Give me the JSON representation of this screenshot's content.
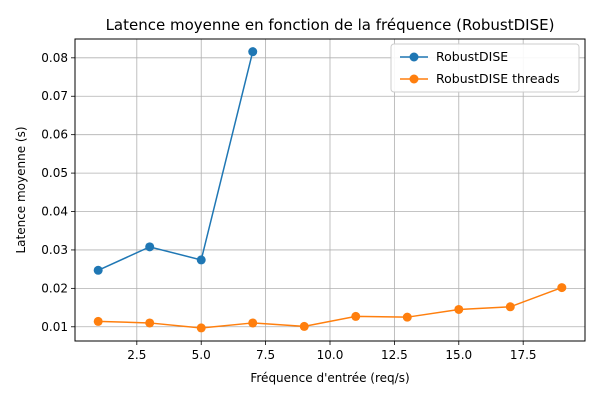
{
  "chart_data": {
    "type": "line",
    "title": "Latence moyenne en fonction de la fréquence (RobustDISE)",
    "xlabel": "Fréquence d'entrée (req/s)",
    "ylabel": "Latence moyenne (s)",
    "xlim": [
      0.1,
      19.9
    ],
    "ylim": [
      0.0063,
      0.0849
    ],
    "xticks": [
      2.5,
      5.0,
      7.5,
      10.0,
      12.5,
      15.0,
      17.5
    ],
    "xtick_labels": [
      "2.5",
      "5.0",
      "7.5",
      "10.0",
      "12.5",
      "15.0",
      "17.5"
    ],
    "yticks": [
      0.01,
      0.02,
      0.03,
      0.04,
      0.05,
      0.06,
      0.07,
      0.08
    ],
    "ytick_labels": [
      "0.01",
      "0.02",
      "0.03",
      "0.04",
      "0.05",
      "0.06",
      "0.07",
      "0.08"
    ],
    "grid": true,
    "legend_position": "top-right",
    "series": [
      {
        "name": "RobustDISE",
        "color": "#1f77b4",
        "marker": "circle",
        "x": [
          1,
          3,
          5,
          7
        ],
        "y": [
          0.0247,
          0.0308,
          0.0274,
          0.0816
        ]
      },
      {
        "name": "RobustDISE threads",
        "color": "#ff7f0e",
        "marker": "circle",
        "x": [
          1,
          3,
          5,
          7,
          9,
          11,
          13,
          15,
          17,
          19
        ],
        "y": [
          0.0114,
          0.011,
          0.0097,
          0.011,
          0.0101,
          0.0127,
          0.0125,
          0.0145,
          0.0152,
          0.0202
        ]
      }
    ]
  }
}
